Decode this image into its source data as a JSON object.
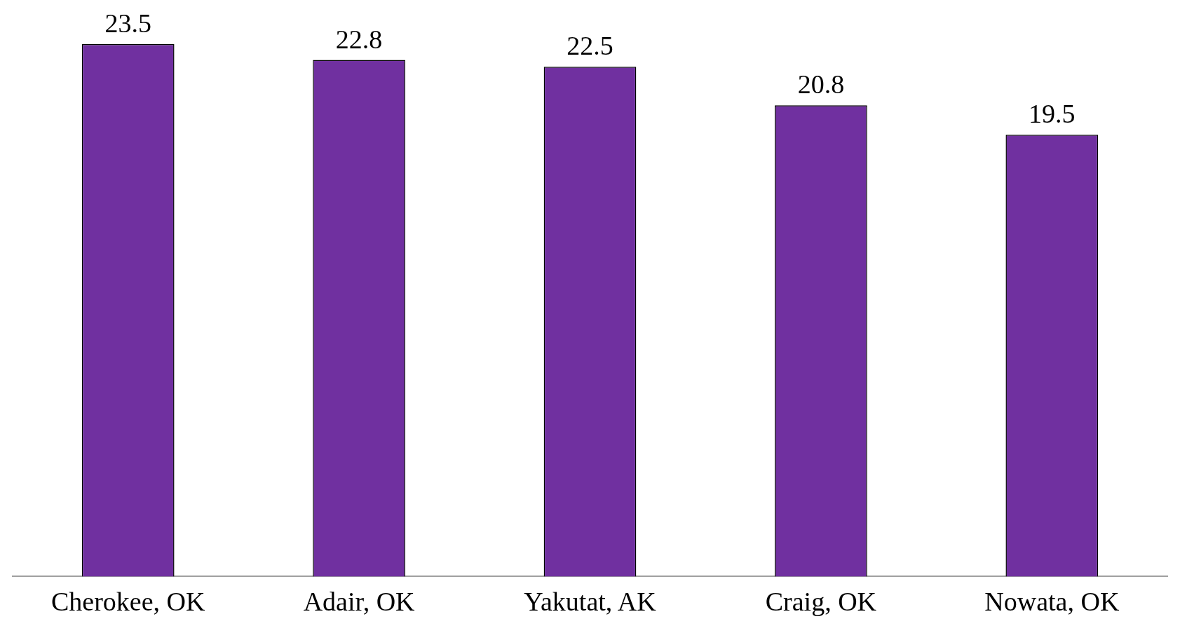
{
  "chart_data": {
    "type": "bar",
    "categories": [
      "Cherokee, OK",
      "Adair, OK",
      "Yakutat, AK",
      "Craig, OK",
      "Nowata, OK"
    ],
    "values": [
      23.5,
      22.8,
      22.5,
      20.8,
      19.5
    ],
    "color": "#7030a0",
    "data_labels": true,
    "grid": false,
    "legend": false
  }
}
